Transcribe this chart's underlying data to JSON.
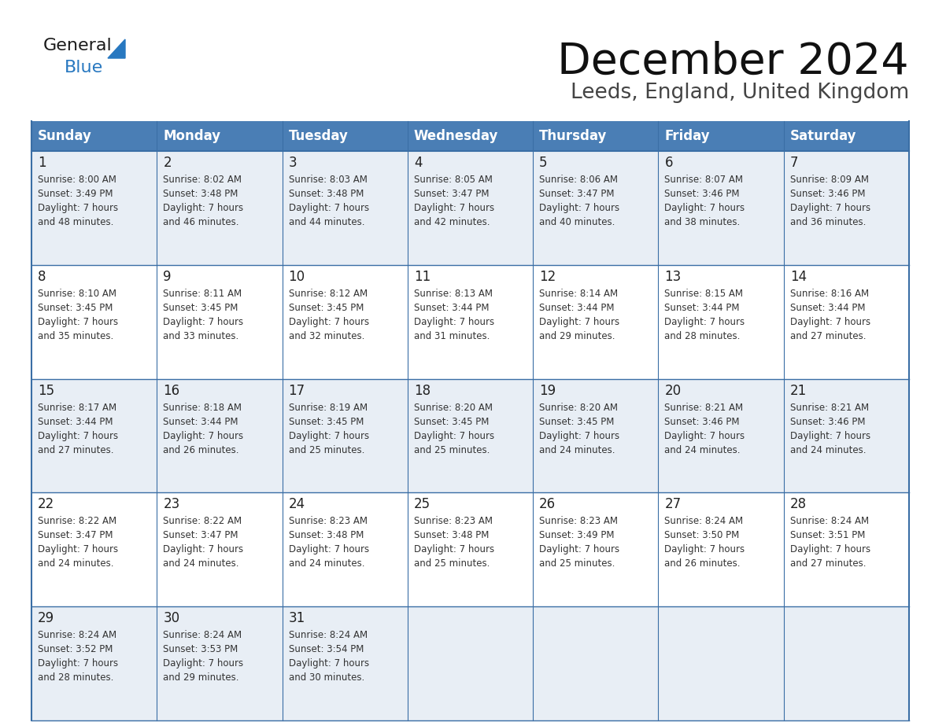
{
  "title": "December 2024",
  "subtitle": "Leeds, England, United Kingdom",
  "header_color": "#4a7eb5",
  "header_text_color": "#ffffff",
  "cell_bg_row0": "#e8eef5",
  "cell_bg_row1": "#ffffff",
  "border_color": "#3a6ea5",
  "day_headers": [
    "Sunday",
    "Monday",
    "Tuesday",
    "Wednesday",
    "Thursday",
    "Friday",
    "Saturday"
  ],
  "logo_color1": "#1a1a1a",
  "logo_color2": "#2878c0",
  "logo_triangle_color": "#2878c0",
  "title_color": "#111111",
  "subtitle_color": "#444444",
  "cell_text_color": "#333333",
  "day_num_color": "#222222",
  "weeks": [
    [
      {
        "day": 1,
        "sunrise": "8:00 AM",
        "sunset": "3:49 PM",
        "daylight": "7 hours and 48 minutes."
      },
      {
        "day": 2,
        "sunrise": "8:02 AM",
        "sunset": "3:48 PM",
        "daylight": "7 hours and 46 minutes."
      },
      {
        "day": 3,
        "sunrise": "8:03 AM",
        "sunset": "3:48 PM",
        "daylight": "7 hours and 44 minutes."
      },
      {
        "day": 4,
        "sunrise": "8:05 AM",
        "sunset": "3:47 PM",
        "daylight": "7 hours and 42 minutes."
      },
      {
        "day": 5,
        "sunrise": "8:06 AM",
        "sunset": "3:47 PM",
        "daylight": "7 hours and 40 minutes."
      },
      {
        "day": 6,
        "sunrise": "8:07 AM",
        "sunset": "3:46 PM",
        "daylight": "7 hours and 38 minutes."
      },
      {
        "day": 7,
        "sunrise": "8:09 AM",
        "sunset": "3:46 PM",
        "daylight": "7 hours and 36 minutes."
      }
    ],
    [
      {
        "day": 8,
        "sunrise": "8:10 AM",
        "sunset": "3:45 PM",
        "daylight": "7 hours and 35 minutes."
      },
      {
        "day": 9,
        "sunrise": "8:11 AM",
        "sunset": "3:45 PM",
        "daylight": "7 hours and 33 minutes."
      },
      {
        "day": 10,
        "sunrise": "8:12 AM",
        "sunset": "3:45 PM",
        "daylight": "7 hours and 32 minutes."
      },
      {
        "day": 11,
        "sunrise": "8:13 AM",
        "sunset": "3:44 PM",
        "daylight": "7 hours and 31 minutes."
      },
      {
        "day": 12,
        "sunrise": "8:14 AM",
        "sunset": "3:44 PM",
        "daylight": "7 hours and 29 minutes."
      },
      {
        "day": 13,
        "sunrise": "8:15 AM",
        "sunset": "3:44 PM",
        "daylight": "7 hours and 28 minutes."
      },
      {
        "day": 14,
        "sunrise": "8:16 AM",
        "sunset": "3:44 PM",
        "daylight": "7 hours and 27 minutes."
      }
    ],
    [
      {
        "day": 15,
        "sunrise": "8:17 AM",
        "sunset": "3:44 PM",
        "daylight": "7 hours and 27 minutes."
      },
      {
        "day": 16,
        "sunrise": "8:18 AM",
        "sunset": "3:44 PM",
        "daylight": "7 hours and 26 minutes."
      },
      {
        "day": 17,
        "sunrise": "8:19 AM",
        "sunset": "3:45 PM",
        "daylight": "7 hours and 25 minutes."
      },
      {
        "day": 18,
        "sunrise": "8:20 AM",
        "sunset": "3:45 PM",
        "daylight": "7 hours and 25 minutes."
      },
      {
        "day": 19,
        "sunrise": "8:20 AM",
        "sunset": "3:45 PM",
        "daylight": "7 hours and 24 minutes."
      },
      {
        "day": 20,
        "sunrise": "8:21 AM",
        "sunset": "3:46 PM",
        "daylight": "7 hours and 24 minutes."
      },
      {
        "day": 21,
        "sunrise": "8:21 AM",
        "sunset": "3:46 PM",
        "daylight": "7 hours and 24 minutes."
      }
    ],
    [
      {
        "day": 22,
        "sunrise": "8:22 AM",
        "sunset": "3:47 PM",
        "daylight": "7 hours and 24 minutes."
      },
      {
        "day": 23,
        "sunrise": "8:22 AM",
        "sunset": "3:47 PM",
        "daylight": "7 hours and 24 minutes."
      },
      {
        "day": 24,
        "sunrise": "8:23 AM",
        "sunset": "3:48 PM",
        "daylight": "7 hours and 24 minutes."
      },
      {
        "day": 25,
        "sunrise": "8:23 AM",
        "sunset": "3:48 PM",
        "daylight": "7 hours and 25 minutes."
      },
      {
        "day": 26,
        "sunrise": "8:23 AM",
        "sunset": "3:49 PM",
        "daylight": "7 hours and 25 minutes."
      },
      {
        "day": 27,
        "sunrise": "8:24 AM",
        "sunset": "3:50 PM",
        "daylight": "7 hours and 26 minutes."
      },
      {
        "day": 28,
        "sunrise": "8:24 AM",
        "sunset": "3:51 PM",
        "daylight": "7 hours and 27 minutes."
      }
    ],
    [
      {
        "day": 29,
        "sunrise": "8:24 AM",
        "sunset": "3:52 PM",
        "daylight": "7 hours and 28 minutes."
      },
      {
        "day": 30,
        "sunrise": "8:24 AM",
        "sunset": "3:53 PM",
        "daylight": "7 hours and 29 minutes."
      },
      {
        "day": 31,
        "sunrise": "8:24 AM",
        "sunset": "3:54 PM",
        "daylight": "7 hours and 30 minutes."
      },
      null,
      null,
      null,
      null
    ]
  ]
}
